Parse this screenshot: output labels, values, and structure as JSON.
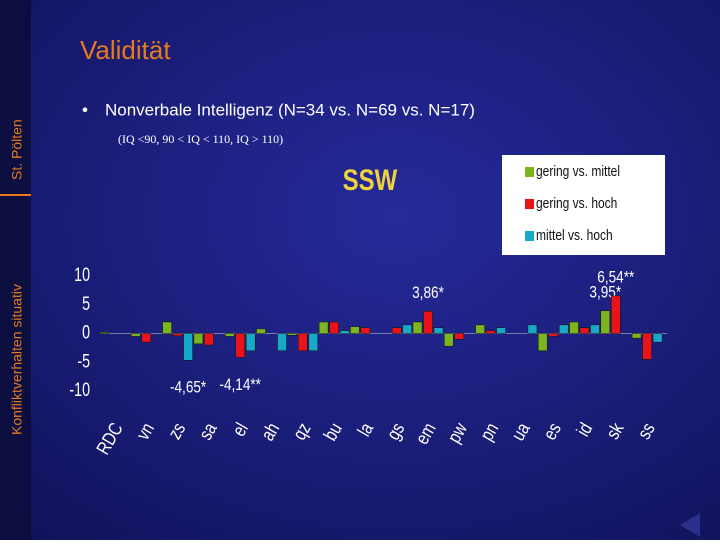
{
  "slide": {
    "side_top": "St. Pölten",
    "side_bottom": "Konfliktverhalten situativ",
    "title": "Validität",
    "bullet": "Nonverbale Intelligenz (N=34 vs. N=69 vs. N=17)",
    "subtext": "(IQ <90, 90 < IQ < 110, IQ > 110)"
  },
  "chart_data": {
    "type": "bar",
    "title": "SSW",
    "categories": [
      "RDC",
      "vn",
      "zs",
      "sa",
      "el",
      "ah",
      "qz",
      "bu",
      "la",
      "gs",
      "em",
      "pw",
      "pn",
      "ua",
      "es",
      "id",
      "sk",
      "ss"
    ],
    "series": [
      {
        "name": "gering vs. mittel",
        "color": "#7ab51d",
        "values": [
          0.2,
          -0.5,
          2,
          -1.8,
          -0.5,
          0.8,
          -0.3,
          2,
          1.2,
          0,
          2,
          -2.2,
          1.5,
          0,
          -3,
          2,
          3.95,
          -0.8
        ],
        "value_labels": [
          null,
          null,
          null,
          null,
          null,
          null,
          null,
          null,
          null,
          null,
          null,
          null,
          null,
          null,
          null,
          null,
          "3,95*",
          null
        ]
      },
      {
        "name": "gering  vs. hoch",
        "color": "#e8141a",
        "values": [
          0,
          -1.5,
          -0.4,
          -2,
          -4.14,
          0,
          -3,
          2,
          1,
          1,
          3.86,
          -1,
          0.5,
          0,
          -0.5,
          1,
          6.54,
          -4.5
        ],
        "value_labels": [
          null,
          null,
          null,
          null,
          "-4,14**",
          null,
          null,
          null,
          null,
          null,
          "3,86*",
          null,
          null,
          null,
          null,
          null,
          "6,54**",
          null
        ]
      },
      {
        "name": "mittel vs. hoch",
        "color": "#18a8c8",
        "values": [
          0,
          0,
          -4.65,
          0,
          -3,
          -3,
          -3,
          0.5,
          0,
          1.5,
          1,
          0,
          1,
          1.5,
          1.5,
          1.5,
          0,
          -1.5
        ],
        "value_labels": [
          null,
          null,
          "-4,65*",
          null,
          null,
          null,
          null,
          null,
          null,
          null,
          null,
          null,
          null,
          null,
          null,
          null,
          null,
          null
        ]
      }
    ],
    "ylim": [
      -10,
      10
    ],
    "yticks": [
      10,
      5,
      0,
      -5,
      -10
    ],
    "legend": "upper right"
  }
}
